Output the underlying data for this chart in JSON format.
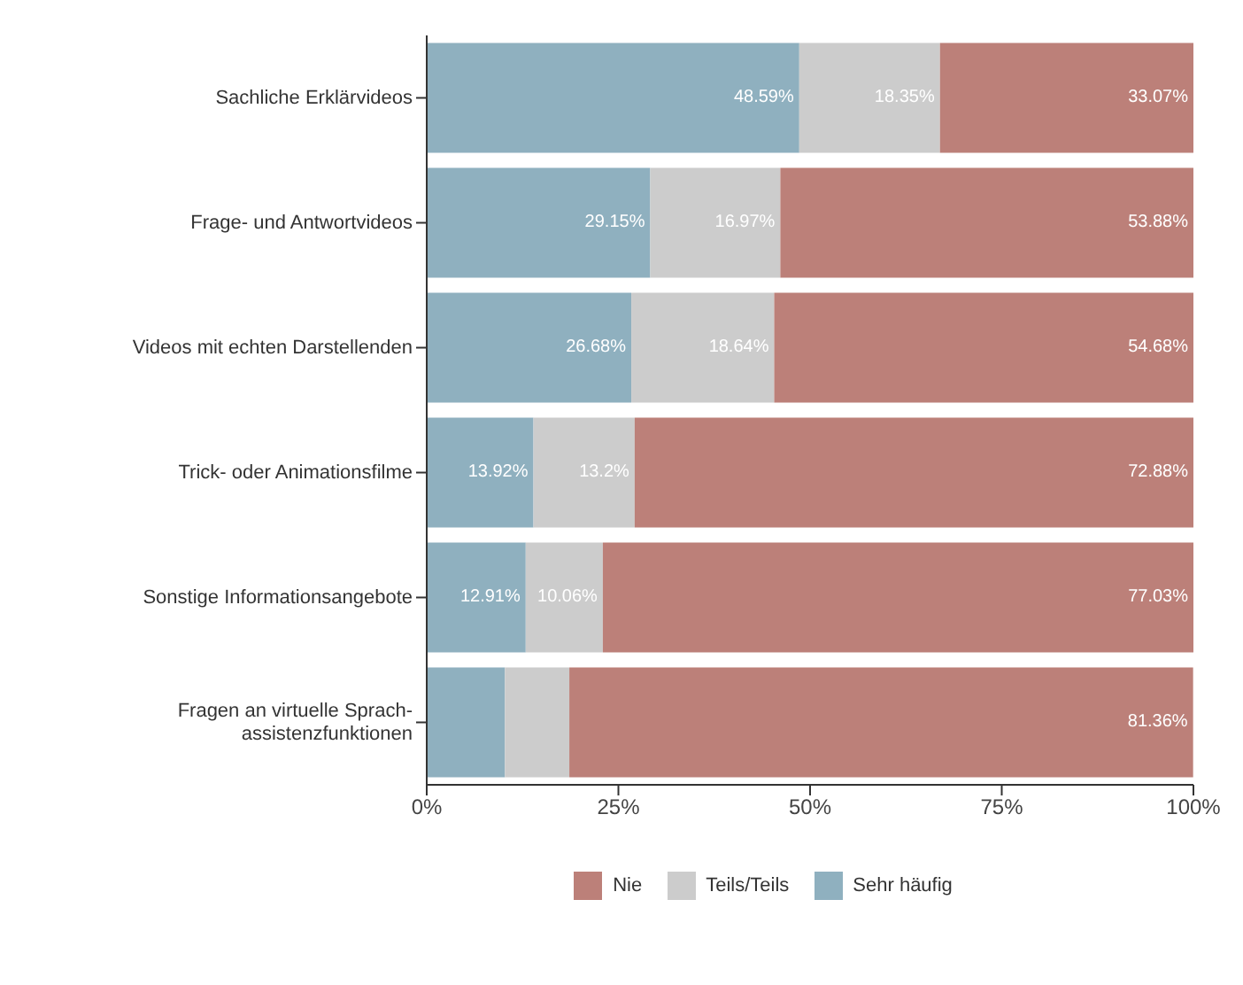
{
  "chart_data": {
    "type": "bar",
    "orientation": "horizontal",
    "stacked": true,
    "legend": "bottom",
    "categories": [
      "Sachliche Erklärvideos",
      "Frage- und Antwortvideos",
      "Videos mit echten Darstellenden",
      "Trick- oder Animationsfilme",
      "Sonstige Informationsangebote",
      "Fragen an virtuelle Sprach-\nassistenzfunktionen"
    ],
    "series": [
      {
        "name": "Sehr häufig",
        "color": "#8fb0bf",
        "values": [
          48.59,
          29.15,
          26.68,
          13.92,
          12.91,
          10.2
        ],
        "value_labels": [
          "48.59%",
          "29.15%",
          "26.68%",
          "13.92%",
          "12.91%",
          null
        ]
      },
      {
        "name": "Teils/Teils",
        "color": "#cccccc",
        "values": [
          18.35,
          16.97,
          18.64,
          13.2,
          10.06,
          8.4
        ],
        "value_labels": [
          "18.35%",
          "16.97%",
          "18.64%",
          "13.2%",
          "10.06%",
          null
        ]
      },
      {
        "name": "Nie",
        "color": "#bc8079",
        "values": [
          33.07,
          53.88,
          54.68,
          72.88,
          77.03,
          81.36
        ],
        "value_labels": [
          "33.07%",
          "53.88%",
          "54.68%",
          "72.88%",
          "77.03%",
          "81.36%"
        ]
      }
    ],
    "xlim": [
      0,
      100
    ],
    "xticks": [
      {
        "value": 0,
        "label": "0%"
      },
      {
        "value": 25,
        "label": "25%"
      },
      {
        "value": 50,
        "label": "50%"
      },
      {
        "value": 75,
        "label": "75%"
      },
      {
        "value": 100,
        "label": "100%"
      }
    ]
  }
}
